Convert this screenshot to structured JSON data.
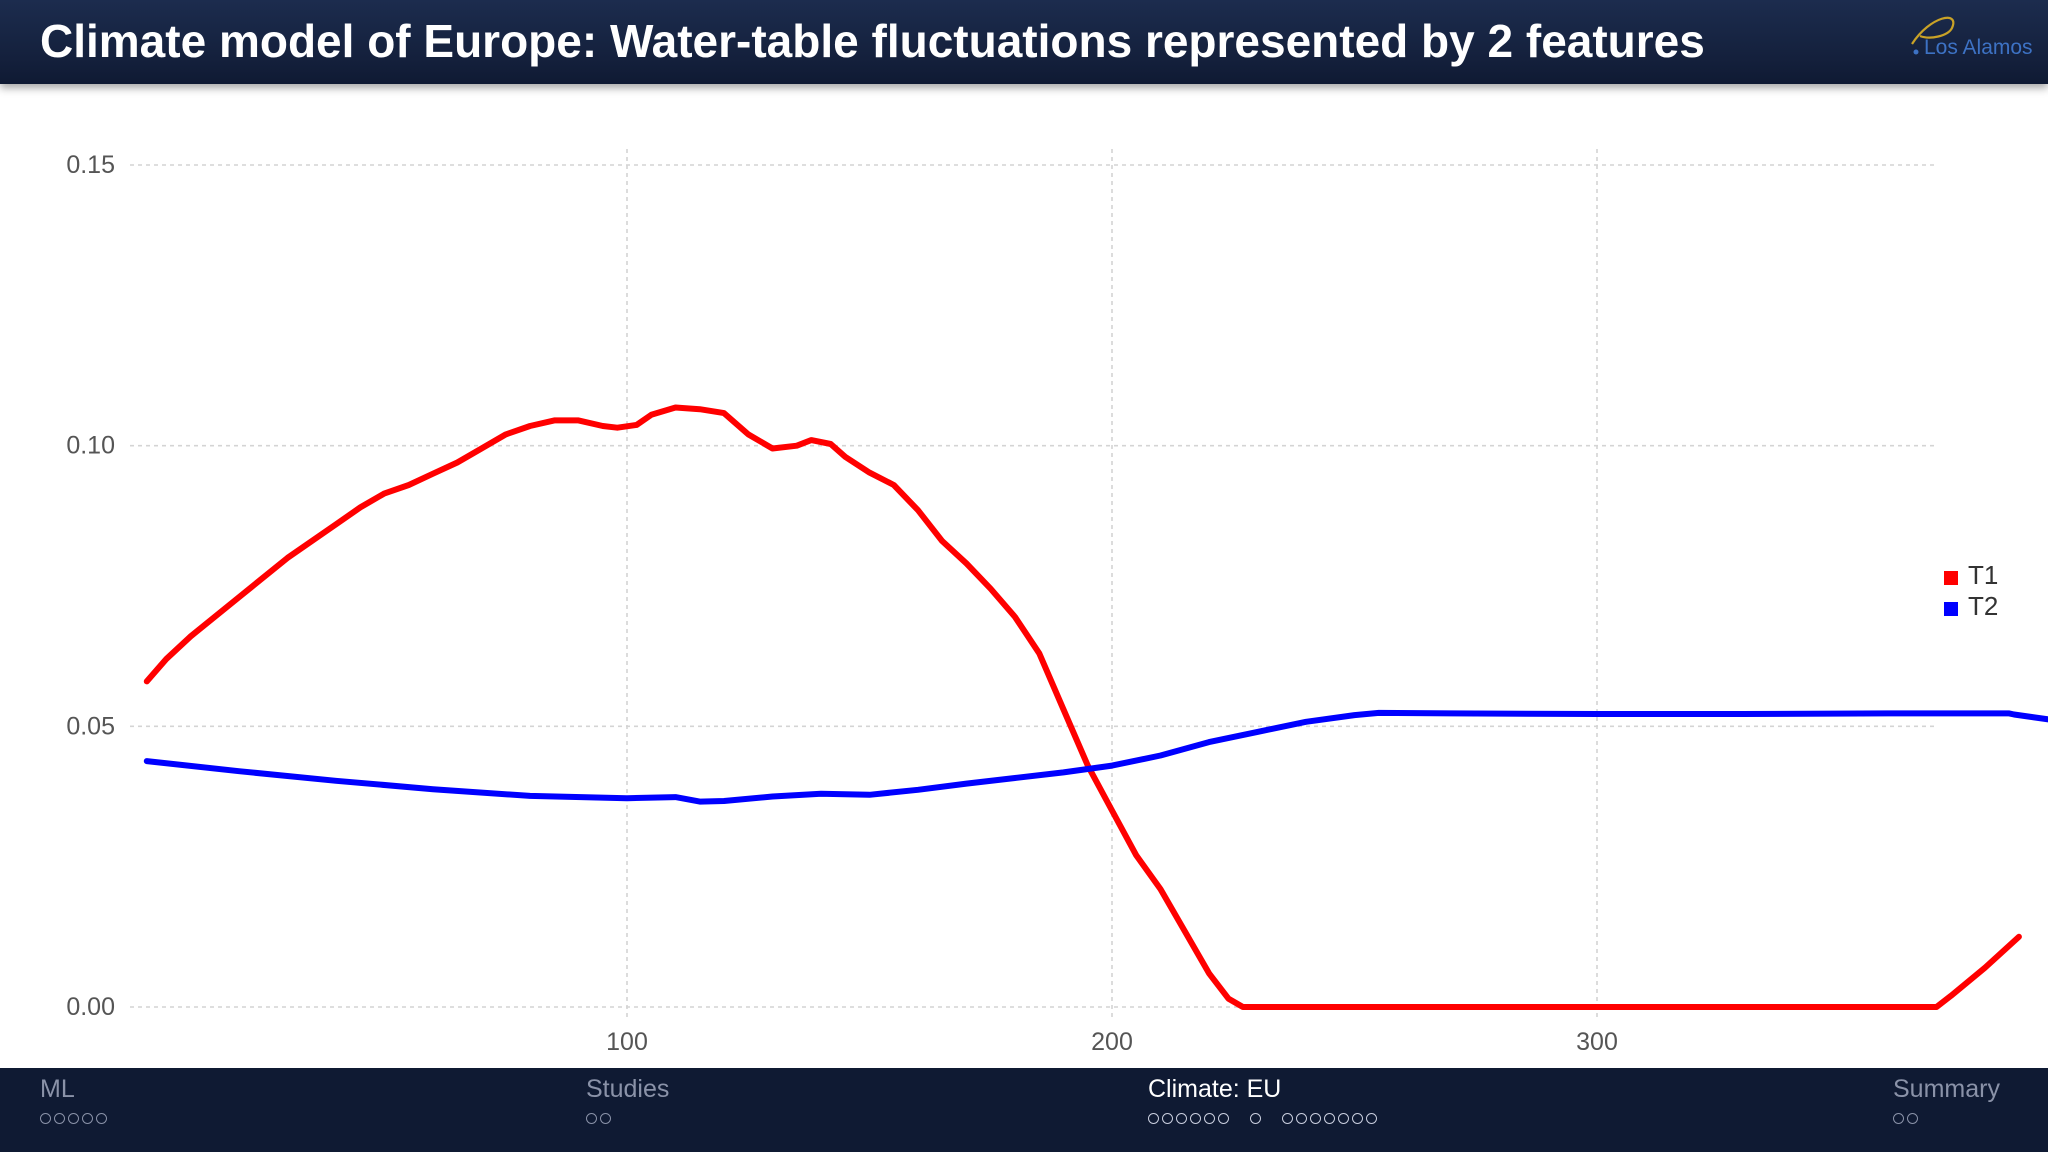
{
  "header": {
    "title": "Climate model of Europe: Water-table fluctuations represented by 2 features",
    "logo_text": "Los Alamos"
  },
  "nav": {
    "sections": [
      {
        "label": "ML",
        "dot_groups": [
          5
        ],
        "active": false
      },
      {
        "label": "Studies",
        "dot_groups": [
          2
        ],
        "active": false
      },
      {
        "label": "Climate: EU",
        "dot_groups": [
          6,
          1,
          7
        ],
        "active": true
      },
      {
        "label": "Summary",
        "dot_groups": [
          2
        ],
        "active": false
      }
    ]
  },
  "colors": {
    "T1": "#ff0000",
    "T2": "#0000ff",
    "grid": "#d4d4d4",
    "tick_text": "#555555"
  },
  "chart_data": {
    "type": "line",
    "title": "",
    "xlabel": "",
    "ylabel": "",
    "xlim": [
      0,
      368
    ],
    "ylim": [
      0,
      0.15
    ],
    "grid": true,
    "legend": "right",
    "x_ticks": [
      100,
      200,
      300
    ],
    "x_tick_labels": [
      "100",
      "200",
      "300"
    ],
    "y_ticks": [
      0,
      0.05,
      0.1,
      0.15
    ],
    "y_tick_labels": [
      "0.00",
      "0.05",
      "0.10",
      "0.15"
    ],
    "series": [
      {
        "name": "T1",
        "color": "#ff0000",
        "points": [
          [
            1,
            0.058
          ],
          [
            5,
            0.062
          ],
          [
            10,
            0.066
          ],
          [
            20,
            0.073
          ],
          [
            30,
            0.08
          ],
          [
            40,
            0.086
          ],
          [
            45,
            0.089
          ],
          [
            50,
            0.0915
          ],
          [
            55,
            0.093
          ],
          [
            60,
            0.095
          ],
          [
            65,
            0.097
          ],
          [
            70,
            0.0995
          ],
          [
            75,
            0.102
          ],
          [
            80,
            0.1035
          ],
          [
            85,
            0.1045
          ],
          [
            90,
            0.1045
          ],
          [
            95,
            0.1035
          ],
          [
            98,
            0.1032
          ],
          [
            102,
            0.1037
          ],
          [
            105,
            0.1055
          ],
          [
            110,
            0.1068
          ],
          [
            115,
            0.1065
          ],
          [
            120,
            0.1058
          ],
          [
            125,
            0.102
          ],
          [
            130,
            0.0995
          ],
          [
            135,
            0.1
          ],
          [
            138,
            0.101
          ],
          [
            142,
            0.1003
          ],
          [
            145,
            0.098
          ],
          [
            150,
            0.0952
          ],
          [
            155,
            0.093
          ],
          [
            160,
            0.0885
          ],
          [
            165,
            0.083
          ],
          [
            170,
            0.079
          ],
          [
            175,
            0.0745
          ],
          [
            180,
            0.0695
          ],
          [
            185,
            0.063
          ],
          [
            190,
            0.053
          ],
          [
            195,
            0.043
          ],
          [
            200,
            0.035
          ],
          [
            205,
            0.027
          ],
          [
            210,
            0.021
          ],
          [
            215,
            0.0135
          ],
          [
            220,
            0.006
          ],
          [
            224,
            0.0015
          ],
          [
            227,
            0.0
          ],
          [
            250,
            0.0
          ],
          [
            300,
            0.0
          ],
          [
            350,
            0.0
          ],
          [
            368,
            0.0
          ],
          [
            370,
            0.0
          ],
          [
            373,
            0.002
          ],
          [
            380,
            0.007
          ],
          [
            387,
            0.0125
          ]
        ]
      },
      {
        "name": "T2",
        "color": "#0000ff",
        "points": [
          [
            1,
            0.0438
          ],
          [
            20,
            0.042
          ],
          [
            40,
            0.0403
          ],
          [
            60,
            0.0388
          ],
          [
            80,
            0.0376
          ],
          [
            100,
            0.0372
          ],
          [
            110,
            0.0374
          ],
          [
            115,
            0.0366
          ],
          [
            120,
            0.0367
          ],
          [
            130,
            0.0375
          ],
          [
            140,
            0.038
          ],
          [
            150,
            0.0378
          ],
          [
            160,
            0.0387
          ],
          [
            170,
            0.0398
          ],
          [
            180,
            0.0408
          ],
          [
            190,
            0.0418
          ],
          [
            200,
            0.043
          ],
          [
            210,
            0.0448
          ],
          [
            220,
            0.0472
          ],
          [
            230,
            0.049
          ],
          [
            240,
            0.0508
          ],
          [
            250,
            0.052
          ],
          [
            255,
            0.0524
          ],
          [
            270,
            0.0523
          ],
          [
            300,
            0.0522
          ],
          [
            330,
            0.0522
          ],
          [
            360,
            0.0523
          ],
          [
            385,
            0.0523
          ],
          [
            386,
            0.0521
          ],
          [
            395,
            0.051
          ],
          [
            405,
            0.0502
          ]
        ]
      }
    ]
  }
}
